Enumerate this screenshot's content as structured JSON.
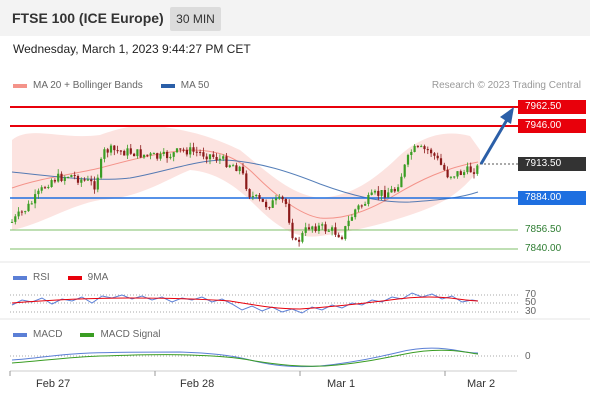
{
  "header": {
    "title": "FTSE 100 (ICE Europe)",
    "timeframe": "30 MIN",
    "datetime": "Wednesday, March 1, 2023 9:44:27 PM CET"
  },
  "legend": {
    "items": [
      {
        "label": "MA 20 + Bollinger Bands",
        "color": "#f4938a"
      },
      {
        "label": "MA 50",
        "color": "#2b5fa8"
      }
    ],
    "research": "Research © 2023 Trading Central"
  },
  "levels": {
    "r2": "7962.50",
    "r1": "7946.00",
    "last": "7913.50",
    "pivot": "7884.00",
    "s1": "7856.50",
    "s2": "7840.00"
  },
  "rsi_panel": {
    "legend": [
      {
        "label": "RSI",
        "color": "#5b7fd6"
      },
      {
        "label": "9MA",
        "color": "#e8000b"
      }
    ],
    "levels": [
      "70",
      "50",
      "30"
    ]
  },
  "macd_panel": {
    "legend": [
      {
        "label": "MACD",
        "color": "#5b7fd6"
      },
      {
        "label": "MACD Signal",
        "color": "#3a9d23"
      }
    ],
    "zero": "0"
  },
  "xaxis": {
    "labels": [
      "Feb 27",
      "Feb 28",
      "Mar 1",
      "Mar 2"
    ]
  },
  "colors": {
    "up": "#3a9d23",
    "down": "#8b1a1a",
    "resistance": "#e8000b",
    "pivot": "#1e6fe0",
    "support": "#7fbf6a",
    "arrow": "#2b5fa8"
  }
}
